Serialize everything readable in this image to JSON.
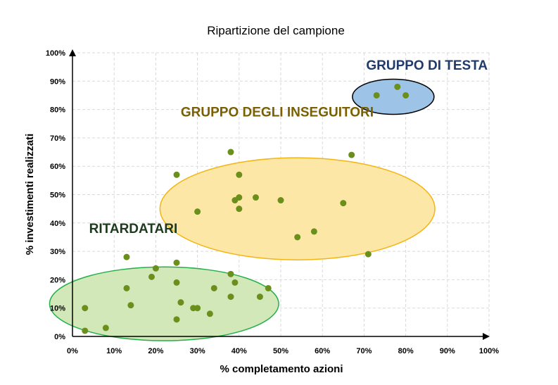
{
  "chart_data": {
    "type": "scatter",
    "title": "Ripartizione del campione",
    "xlabel": "% completamento azioni",
    "ylabel": "% investimenti realizzati",
    "xlim": [
      0,
      100
    ],
    "ylim": [
      0,
      100
    ],
    "xticks": [
      "0%",
      "10%",
      "20%",
      "30%",
      "40%",
      "50%",
      "60%",
      "70%",
      "80%",
      "90%",
      "100%"
    ],
    "yticks": [
      "0%",
      "10%",
      "20%",
      "30%",
      "40%",
      "50%",
      "60%",
      "70%",
      "80%",
      "90%",
      "100%"
    ],
    "grid": true,
    "point_color": "#6a8f1a",
    "points": [
      {
        "x": 3,
        "y": 2
      },
      {
        "x": 3,
        "y": 10
      },
      {
        "x": 8,
        "y": 3
      },
      {
        "x": 13,
        "y": 28
      },
      {
        "x": 13,
        "y": 17
      },
      {
        "x": 14,
        "y": 11
      },
      {
        "x": 19,
        "y": 21
      },
      {
        "x": 20,
        "y": 24
      },
      {
        "x": 25,
        "y": 26
      },
      {
        "x": 25,
        "y": 19
      },
      {
        "x": 25,
        "y": 6
      },
      {
        "x": 26,
        "y": 12
      },
      {
        "x": 29,
        "y": 10
      },
      {
        "x": 30,
        "y": 10
      },
      {
        "x": 33,
        "y": 8
      },
      {
        "x": 34,
        "y": 17
      },
      {
        "x": 38,
        "y": 22
      },
      {
        "x": 38,
        "y": 14
      },
      {
        "x": 39,
        "y": 19
      },
      {
        "x": 45,
        "y": 14
      },
      {
        "x": 47,
        "y": 17
      },
      {
        "x": 25,
        "y": 57
      },
      {
        "x": 30,
        "y": 44
      },
      {
        "x": 38,
        "y": 65
      },
      {
        "x": 39,
        "y": 48
      },
      {
        "x": 40,
        "y": 49
      },
      {
        "x": 40,
        "y": 57
      },
      {
        "x": 40,
        "y": 45
      },
      {
        "x": 44,
        "y": 49
      },
      {
        "x": 50,
        "y": 48
      },
      {
        "x": 54,
        "y": 35
      },
      {
        "x": 58,
        "y": 37
      },
      {
        "x": 65,
        "y": 47
      },
      {
        "x": 67,
        "y": 64
      },
      {
        "x": 71,
        "y": 29
      },
      {
        "x": 73,
        "y": 85
      },
      {
        "x": 78,
        "y": 88
      },
      {
        "x": 80,
        "y": 85
      }
    ],
    "groups": [
      {
        "name": "RITARDATARI",
        "cx": 22,
        "cy": 11.5,
        "rx": 27.5,
        "ry": 13,
        "fill": "#d2e8b9",
        "stroke": "#22b04a",
        "label_color": "#1e3a1e",
        "label_x": 4,
        "label_y": 36.5,
        "label_anchor": "start"
      },
      {
        "name": "GRUPPO DEGLI INSEGUITORI",
        "cx": 54,
        "cy": 45,
        "rx": 33,
        "ry": 18,
        "fill": "#fde7a6",
        "stroke": "#f2b515",
        "label_color": "#7a6000",
        "label_x": 26,
        "label_y": 77.5,
        "label_anchor": "start"
      },
      {
        "name": "GRUPPO DI TESTA",
        "cx": 77,
        "cy": 84.5,
        "rx": 9.8,
        "ry": 6.2,
        "fill": "#9dc3e6",
        "stroke": "#000000",
        "label_color": "#1f3a6b",
        "label_x": 70.5,
        "label_y": 94,
        "label_anchor": "start"
      }
    ]
  }
}
